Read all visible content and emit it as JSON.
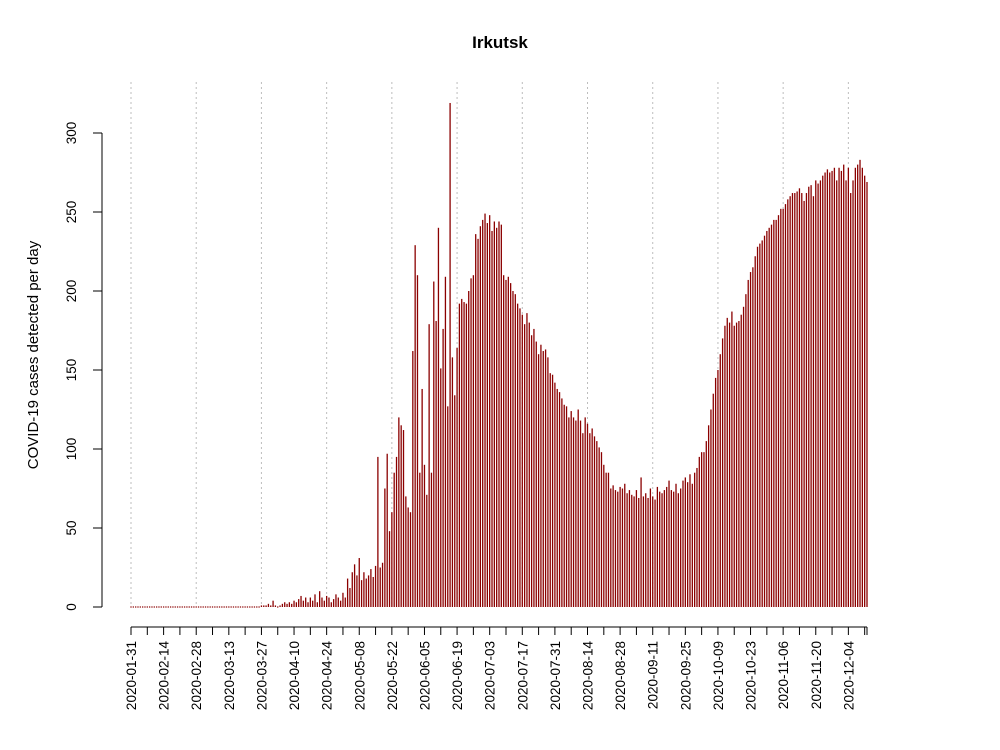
{
  "chart_data": {
    "type": "bar",
    "title": "Irkutsk",
    "xlabel": "",
    "ylabel": "COVID-19 cases detected per day",
    "ylim": [
      0,
      320
    ],
    "x_start": "2020-01-31",
    "x_end": "2020-12-14",
    "bar_color": "#8b0000",
    "grid": "vertical dotted lines at every other tick",
    "y_ticks": [
      0,
      50,
      100,
      150,
      200,
      250,
      300
    ],
    "x_tick_labels": [
      "2020-01-31",
      "2020-02-14",
      "2020-02-28",
      "2020-03-13",
      "2020-03-27",
      "2020-04-10",
      "2020-04-24",
      "2020-05-08",
      "2020-05-22",
      "2020-06-05",
      "2020-06-19",
      "2020-07-03",
      "2020-07-17",
      "2020-07-31",
      "2020-08-14",
      "2020-08-28",
      "2020-09-11",
      "2020-09-25",
      "2020-10-09",
      "2020-10-23",
      "2020-11-06",
      "2020-11-20",
      "2020-12-04"
    ],
    "series": [
      {
        "values": [
          0,
          0,
          0,
          0,
          0,
          0,
          0,
          0,
          0,
          0,
          0,
          0,
          0,
          0,
          0,
          0,
          0,
          0,
          0,
          0,
          0,
          0,
          0,
          0,
          0,
          0,
          0,
          0,
          0,
          0,
          0,
          0,
          0,
          0,
          0,
          0,
          0,
          0,
          0,
          0,
          0,
          0,
          0,
          0,
          0,
          0,
          0,
          0,
          0,
          0,
          0,
          0,
          0,
          0,
          0,
          0,
          1,
          1,
          1,
          2,
          1,
          4,
          1,
          0,
          1,
          2,
          3,
          2,
          3,
          2,
          4,
          3,
          5,
          7,
          4,
          6,
          3,
          6,
          4,
          8,
          3,
          10,
          6,
          4,
          7,
          6,
          3,
          5,
          8,
          6,
          4,
          9,
          6,
          18,
          12,
          22,
          27,
          20,
          31,
          17,
          22,
          18,
          20,
          24,
          19,
          26,
          95,
          25,
          28,
          75,
          97,
          48,
          60,
          85,
          95,
          120,
          115,
          112,
          70,
          63,
          60,
          162,
          229,
          210,
          85,
          138,
          90,
          71,
          179,
          85,
          206,
          181,
          240,
          151,
          176,
          209,
          127,
          319,
          158,
          134,
          164,
          192,
          195,
          193,
          192,
          200,
          208,
          210,
          236,
          233,
          241,
          245,
          249,
          243,
          248,
          238,
          244,
          240,
          244,
          242,
          210,
          207,
          209,
          205,
          200,
          198,
          192,
          189,
          185,
          179,
          186,
          180,
          172,
          176,
          168,
          160,
          166,
          162,
          163,
          158,
          148,
          147,
          142,
          138,
          136,
          132,
          128,
          127,
          120,
          124,
          120,
          118,
          125,
          118,
          110,
          120,
          116,
          110,
          113,
          108,
          105,
          101,
          98,
          90,
          85,
          85,
          75,
          77,
          74,
          73,
          76,
          75,
          78,
          72,
          74,
          71,
          70,
          74,
          69,
          82,
          70,
          72,
          69,
          75,
          70,
          68,
          76,
          73,
          72,
          74,
          76,
          80,
          74,
          73,
          78,
          72,
          75,
          80,
          82,
          79,
          84,
          78,
          85,
          88,
          95,
          98,
          98,
          105,
          115,
          125,
          135,
          145,
          150,
          160,
          170,
          178,
          183,
          180,
          187,
          178,
          180,
          181,
          185,
          190,
          198,
          207,
          212,
          215,
          222,
          228,
          230,
          232,
          235,
          238,
          240,
          242,
          245,
          245,
          248,
          252,
          252,
          255,
          258,
          260,
          262,
          262,
          263,
          265,
          262,
          257,
          262,
          266,
          267,
          260,
          270,
          268,
          270,
          273,
          275,
          277,
          275,
          276,
          278,
          270,
          278,
          276,
          280,
          270,
          278,
          262,
          270,
          278,
          280,
          283,
          278,
          273,
          269
        ]
      }
    ]
  }
}
